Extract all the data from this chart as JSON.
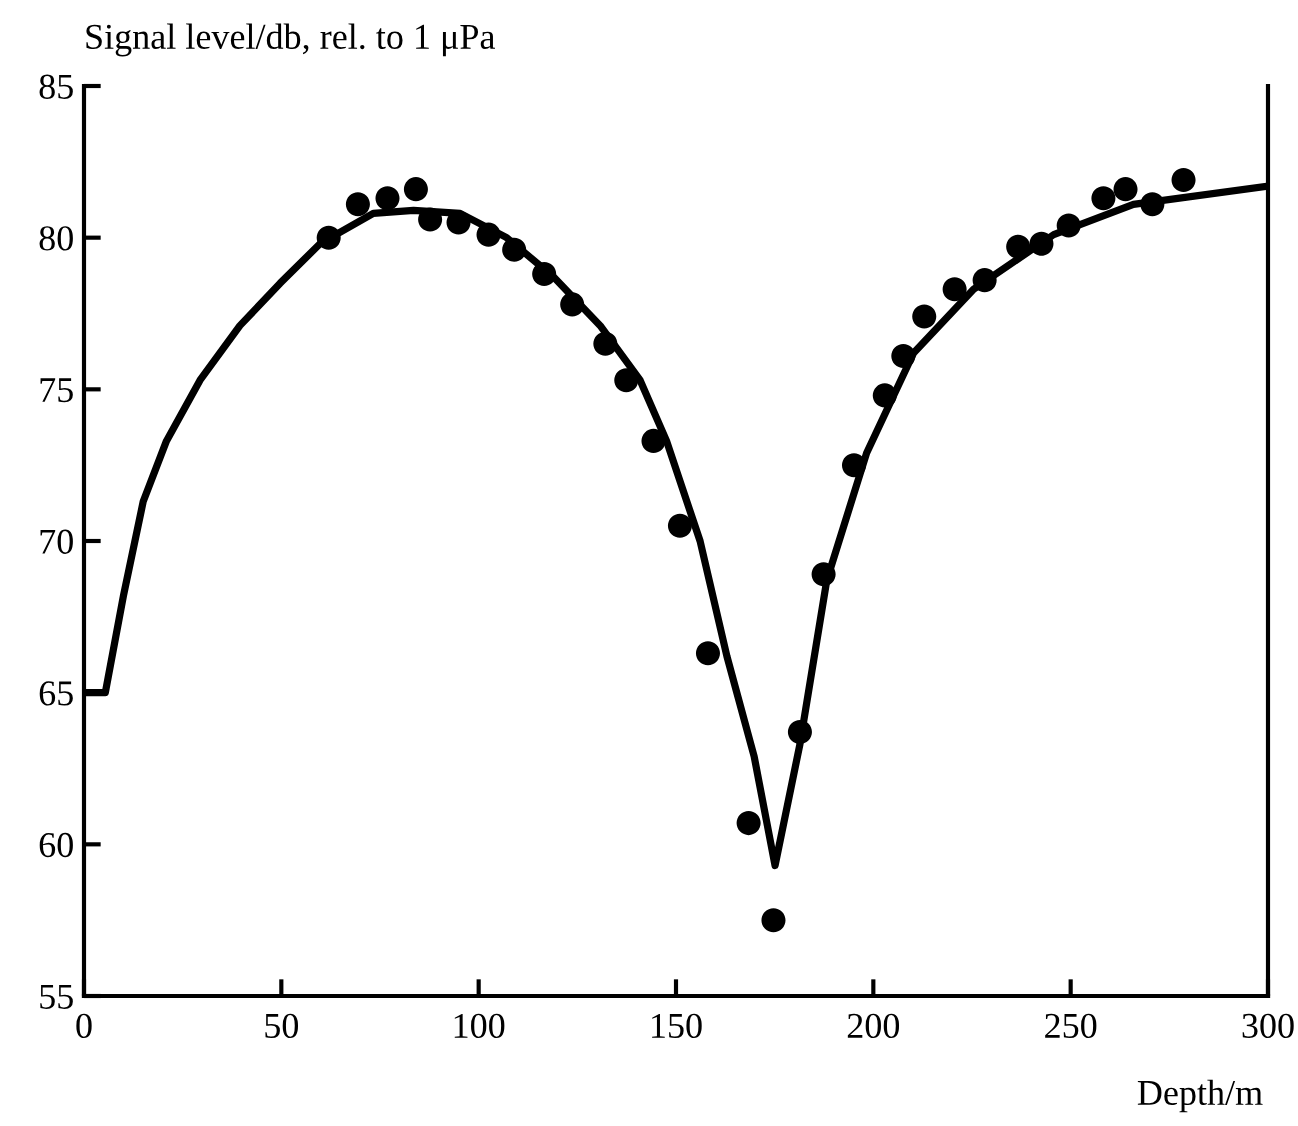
{
  "chart_data": {
    "type": "scatter",
    "xlabel": "Depth/m",
    "ylabel": "Signal level/db, rel. to 1 μPa",
    "xlim": [
      0,
      300
    ],
    "ylim": [
      55,
      85
    ],
    "xticks": [
      0,
      50,
      100,
      150,
      200,
      250,
      300
    ],
    "yticks": [
      55,
      60,
      65,
      70,
      75,
      80,
      85
    ],
    "grid": false,
    "legend": false,
    "series": [
      {
        "color": "#000000",
        "marker": "circle",
        "x": [
          62.0,
          69.4,
          76.9,
          84.1,
          87.7,
          94.9,
          102.5,
          109.0,
          116.6,
          123.7,
          132.1,
          137.4,
          144.3,
          151.0,
          158.1,
          168.4,
          174.7,
          181.4,
          187.4,
          195.1,
          202.9,
          207.6,
          212.9,
          220.6,
          228.2,
          236.7,
          242.6,
          249.5,
          258.3,
          263.9,
          270.7,
          278.6
        ],
        "values": [
          80.0,
          81.1,
          81.3,
          81.6,
          80.6,
          80.5,
          80.1,
          79.6,
          78.8,
          77.8,
          76.5,
          75.3,
          73.3,
          70.5,
          66.3,
          60.7,
          57.5,
          63.7,
          68.9,
          72.5,
          74.8,
          76.1,
          77.4,
          78.3,
          78.6,
          79.7,
          79.8,
          80.4,
          81.3,
          81.6,
          81.1,
          81.9
        ]
      },
      {
        "type": "line",
        "color": "#000000",
        "marker": "none",
        "line_style": "solid",
        "x": [
          0,
          5.4,
          10,
          15,
          20.9,
          29.4,
          39.5,
          49.7,
          59.8,
          73.3,
          83.5,
          95.3,
          107.1,
          119,
          130.8,
          140.9,
          147.6,
          156.1,
          162.9,
          169.8,
          175.1,
          181.4,
          188.2,
          198.3,
          210.2,
          225.4,
          245.7,
          265.9,
          300
        ],
        "values": [
          65.0,
          65.0,
          68.2,
          71.3,
          73.3,
          75.3,
          77.1,
          78.5,
          79.8,
          80.8,
          80.9,
          80.8,
          80.0,
          78.7,
          77.1,
          75.3,
          73.3,
          70.0,
          66.2,
          62.9,
          59.3,
          63.3,
          68.7,
          72.9,
          76.2,
          78.3,
          80.1,
          81.1,
          81.7
        ]
      }
    ]
  }
}
